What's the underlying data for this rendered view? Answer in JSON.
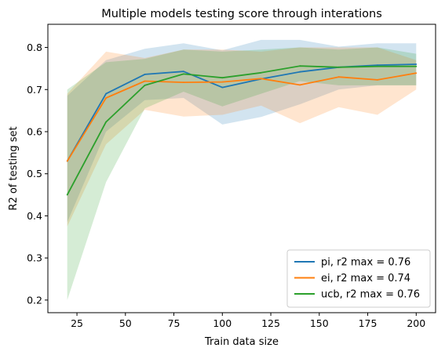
{
  "chart_data": {
    "type": "line",
    "title": "Multiple models testing score through interations",
    "xlabel": "Train data size",
    "ylabel": "R2 of testing set",
    "xlim": [
      10,
      210
    ],
    "ylim": [
      0.17,
      0.855
    ],
    "xticks": [
      25,
      50,
      75,
      100,
      125,
      150,
      175,
      200
    ],
    "yticks": [
      0.2,
      0.3,
      0.4,
      0.5,
      0.6,
      0.7,
      0.8
    ],
    "xtick_labels": [
      "25",
      "50",
      "75",
      "100",
      "125",
      "150",
      "175",
      "200"
    ],
    "ytick_labels": [
      "0.2",
      "0.3",
      "0.4",
      "0.5",
      "0.6",
      "0.7",
      "0.8"
    ],
    "grid": false,
    "legend_position": "lower-right",
    "x": [
      20,
      40,
      60,
      80,
      100,
      120,
      140,
      160,
      180,
      200
    ],
    "series": [
      {
        "name": "pi, r2 max = 0.76",
        "color": "#1f77b4",
        "values": [
          0.53,
          0.69,
          0.736,
          0.743,
          0.705,
          0.725,
          0.742,
          0.753,
          0.758,
          0.76
        ],
        "lower": [
          0.385,
          0.6,
          0.675,
          0.68,
          0.617,
          0.635,
          0.665,
          0.7,
          0.71,
          0.71
        ],
        "upper": [
          0.685,
          0.77,
          0.797,
          0.81,
          0.793,
          0.818,
          0.818,
          0.802,
          0.81,
          0.81
        ]
      },
      {
        "name": "ei, r2 max = 0.74",
        "color": "#ff7f0e",
        "values": [
          0.53,
          0.68,
          0.72,
          0.717,
          0.718,
          0.726,
          0.711,
          0.73,
          0.723,
          0.739
        ],
        "lower": [
          0.375,
          0.57,
          0.652,
          0.636,
          0.64,
          0.662,
          0.62,
          0.658,
          0.64,
          0.7
        ],
        "upper": [
          0.69,
          0.79,
          0.775,
          0.795,
          0.795,
          0.79,
          0.8,
          0.8,
          0.8,
          0.77
        ]
      },
      {
        "name": "ucb, r2 max = 0.76",
        "color": "#2ca02c",
        "values": [
          0.45,
          0.623,
          0.71,
          0.737,
          0.728,
          0.74,
          0.756,
          0.753,
          0.755,
          0.755
        ],
        "lower": [
          0.2,
          0.48,
          0.655,
          0.695,
          0.66,
          0.69,
          0.72,
          0.71,
          0.71,
          0.71
        ],
        "upper": [
          0.7,
          0.765,
          0.773,
          0.795,
          0.79,
          0.795,
          0.8,
          0.795,
          0.8,
          0.785
        ]
      }
    ]
  }
}
